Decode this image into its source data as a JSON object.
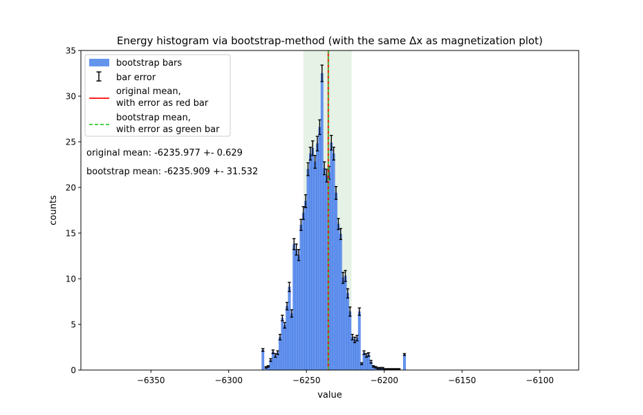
{
  "chart_data": {
    "type": "bar",
    "title": "Energy histogram via bootstrap-method (with the same Δx as magnetization plot)",
    "xlabel": "value",
    "ylabel": "counts",
    "xlim": [
      -6395,
      -6075
    ],
    "ylim": [
      0,
      35
    ],
    "xticks": [
      -6350,
      -6300,
      -6250,
      -6200,
      -6150,
      -6100
    ],
    "xtick_labels": [
      "−6350",
      "−6300",
      "−6250",
      "−6200",
      "−6150",
      "−6100"
    ],
    "yticks": [
      0,
      5,
      10,
      15,
      20,
      25,
      30,
      35
    ],
    "ytick_labels": [
      "0",
      "5",
      "10",
      "15",
      "20",
      "25",
      "30",
      "35"
    ],
    "bin_width": 1.5,
    "bars": {
      "x": [
        -6278.0,
        -6276.0,
        -6274.5,
        -6273.0,
        -6271.5,
        -6270.0,
        -6268.5,
        -6267.0,
        -6265.5,
        -6264.0,
        -6262.5,
        -6261.0,
        -6259.5,
        -6258.0,
        -6256.5,
        -6255.0,
        -6253.5,
        -6252.0,
        -6250.5,
        -6249.0,
        -6247.5,
        -6246.0,
        -6244.5,
        -6243.0,
        -6241.5,
        -6240.0,
        -6238.5,
        -6237.0,
        -6235.5,
        -6234.0,
        -6232.5,
        -6231.0,
        -6229.5,
        -6228.0,
        -6226.5,
        -6225.0,
        -6223.5,
        -6222.0,
        -6220.5,
        -6219.0,
        -6217.5,
        -6216.0,
        -6214.5,
        -6213.0,
        -6211.5,
        -6210.0,
        -6208.5,
        -6207.0,
        -6205.5,
        -6204.0,
        -6202.5,
        -6201.0,
        -6199.5,
        -6198.0,
        -6196.5,
        -6195.0,
        -6193.5,
        -6192.0,
        -6190.5,
        -6187.0
      ],
      "values": [
        2.2,
        0.3,
        0.4,
        1.1,
        2.0,
        1.6,
        1.9,
        3.6,
        5.7,
        4.9,
        7.0,
        9.1,
        6.2,
        13.8,
        13.2,
        12.6,
        15.9,
        17.2,
        18.5,
        22.0,
        23.7,
        24.3,
        22.8,
        24.8,
        26.6,
        32.5,
        22.1,
        21.3,
        21.6,
        24.9,
        23.7,
        19.4,
        16.0,
        14.9,
        10.1,
        10.3,
        8.4,
        6.4,
        3.6,
        3.3,
        3.5,
        6.4,
        0.7,
        1.9,
        1.6,
        1.7,
        0.9,
        0.4,
        0.3,
        0.2,
        0.2,
        0.2,
        0.1,
        0.1,
        0.1,
        0.1,
        0.1,
        0.1,
        0.1,
        1.7
      ],
      "errors": [
        0.15,
        0.08,
        0.08,
        0.15,
        0.2,
        0.2,
        0.2,
        0.3,
        0.3,
        0.3,
        0.4,
        0.5,
        0.4,
        0.6,
        0.6,
        0.6,
        0.6,
        0.7,
        0.7,
        0.7,
        0.7,
        0.8,
        0.7,
        0.8,
        0.8,
        0.9,
        0.7,
        0.7,
        0.7,
        0.8,
        0.7,
        0.7,
        0.6,
        0.6,
        0.6,
        0.6,
        0.5,
        0.5,
        0.3,
        0.3,
        0.3,
        0.4,
        0.1,
        0.2,
        0.2,
        0.2,
        0.15,
        0.08,
        0.08,
        0.08,
        0.08,
        0.08,
        0.05,
        0.05,
        0.05,
        0.05,
        0.05,
        0.05,
        0.05,
        0.1
      ],
      "color": "#6495ed",
      "edge_color": "#4169e1"
    },
    "original_mean": {
      "value": -6235.977,
      "error": 0.629,
      "color": "#ff0000"
    },
    "bootstrap_mean": {
      "value": -6235.909,
      "error": 31.532,
      "color": "#32cd32",
      "band_color": "#e5f2e5",
      "band_range": [
        -6252,
        -6221
      ]
    },
    "legend": {
      "placement": "upper-left",
      "entries": [
        {
          "kind": "bar",
          "lines": [
            "bootstrap bars"
          ]
        },
        {
          "kind": "errorbar",
          "lines": [
            "bar error"
          ]
        },
        {
          "kind": "solid-line",
          "lines": [
            "original mean,",
            "with error as red bar"
          ]
        },
        {
          "kind": "dashed-line",
          "lines": [
            "bootstrap mean,",
            "with error as green bar"
          ]
        }
      ]
    },
    "annotations": [
      "original mean: -6235.977 +- 0.629",
      "bootstrap mean: -6235.909 +- 31.532"
    ]
  }
}
